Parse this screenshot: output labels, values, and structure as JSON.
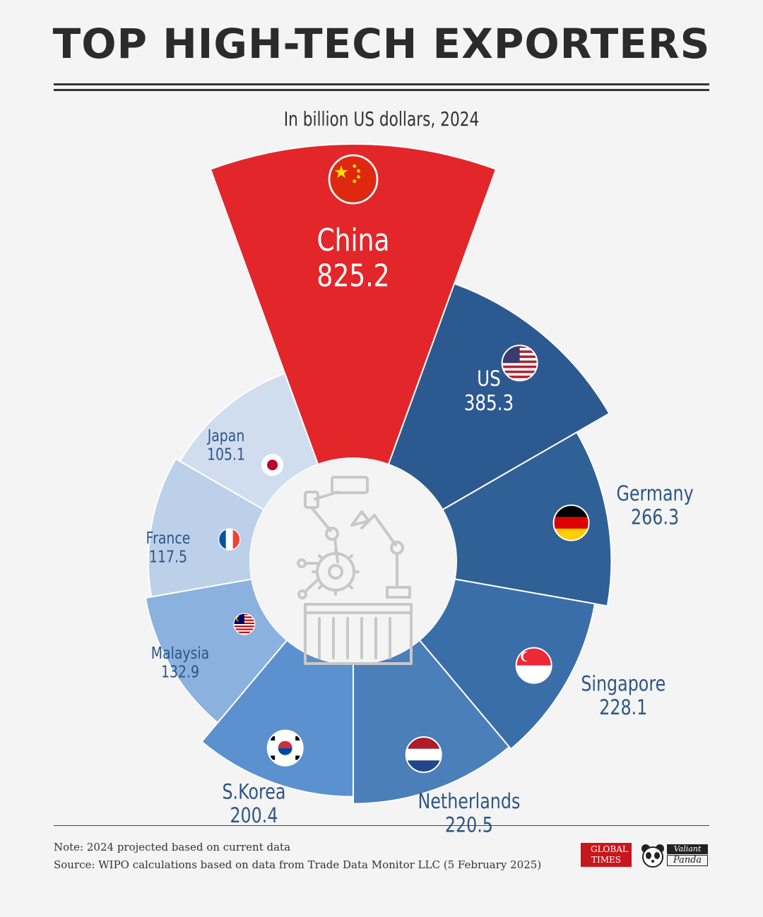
{
  "header": {
    "title": "TOP HIGH-TECH EXPORTERS",
    "subtitle": "In billion US dollars, 2024"
  },
  "footer": {
    "note": "Note: 2024 projected based on current data",
    "source": "Source: WIPO calculations based on data from Trade Data Monitor LLC (5 February 2025)",
    "logo_global_times": "GLOBAL TIMES",
    "logo_valiant": "Valiant",
    "logo_panda": "Panda"
  },
  "chart_data": {
    "type": "radial-bar",
    "unit": "billion US dollars",
    "year": "2024",
    "series": [
      {
        "country": "China",
        "value": 825.2,
        "value_label": "825.2",
        "color": "#e3262a",
        "flag": "china-flag-icon"
      },
      {
        "country": "US",
        "value": 385.3,
        "value_label": "385.3",
        "color": "#2c5a90",
        "flag": "us-flag-icon"
      },
      {
        "country": "Germany",
        "value": 266.3,
        "value_label": "266.3",
        "color": "#2f6096",
        "flag": "germany-flag-icon"
      },
      {
        "country": "Singapore",
        "value": 228.1,
        "value_label": "228.1",
        "color": "#3a6ea8",
        "flag": "singapore-flag-icon"
      },
      {
        "country": "Netherlands",
        "value": 220.5,
        "value_label": "220.5",
        "color": "#4a7fba",
        "flag": "netherlands-flag-icon"
      },
      {
        "country": "S.Korea",
        "value": 200.4,
        "value_label": "200.4",
        "color": "#5b91cf",
        "flag": "south-korea-flag-icon"
      },
      {
        "country": "Malaysia",
        "value": 132.9,
        "value_label": "132.9",
        "color": "#8bb1df",
        "flag": "malaysia-flag-icon"
      },
      {
        "country": "France",
        "value": 117.5,
        "value_label": "117.5",
        "color": "#bcd0ea",
        "flag": "france-flag-icon"
      },
      {
        "country": "Japan",
        "value": 105.1,
        "value_label": "105.1",
        "color": "#d0ddef",
        "flag": "japan-flag-icon"
      }
    ]
  }
}
